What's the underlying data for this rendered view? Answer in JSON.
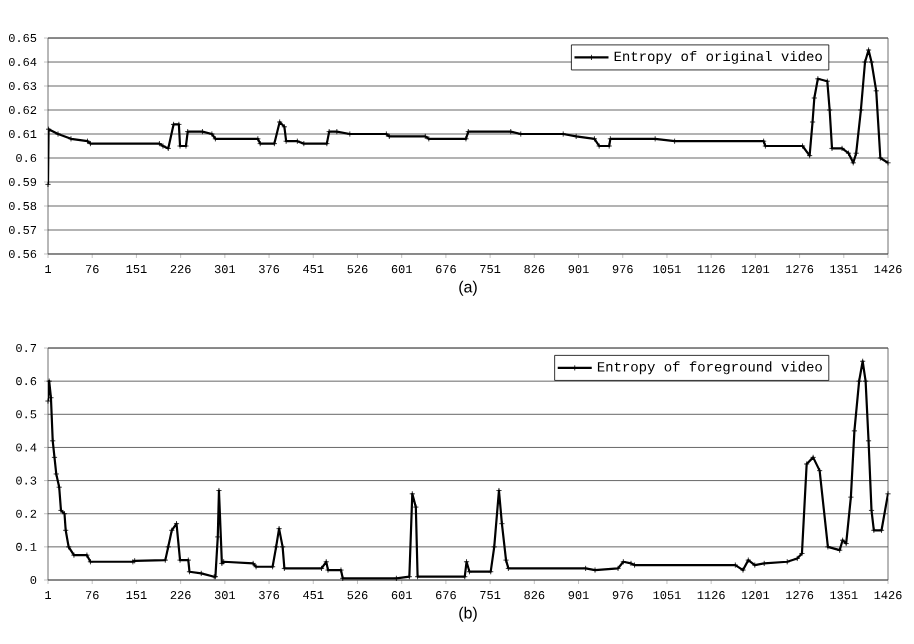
{
  "chart_data": [
    {
      "type": "line",
      "xlabel": "(a)",
      "xlim": [
        1,
        1426
      ],
      "xticks": [
        1,
        76,
        151,
        226,
        301,
        376,
        451,
        526,
        601,
        676,
        751,
        826,
        901,
        976,
        1051,
        1126,
        1201,
        1276,
        1351,
        1426
      ],
      "ylim": [
        0.56,
        0.65
      ],
      "yticks": [
        0.56,
        0.57,
        0.58,
        0.59,
        0.6,
        0.61,
        0.62,
        0.63,
        0.64,
        0.65
      ],
      "grid": "y",
      "legend": "top right",
      "marker": "cross",
      "series": [
        {
          "name": "Entropy of original video",
          "color": "#000000",
          "x": [
            1,
            2,
            18,
            40,
            68,
            73,
            190,
            196,
            205,
            214,
            223,
            225,
            235,
            238,
            263,
            279,
            285,
            357,
            361,
            385,
            394,
            402,
            405,
            424,
            435,
            474,
            478,
            491,
            513,
            575,
            580,
            641,
            647,
            710,
            714,
            786,
            803,
            875,
            897,
            928,
            936,
            953,
            955,
            1031,
            1064,
            1215,
            1218,
            1281,
            1293,
            1298,
            1301,
            1307,
            1323,
            1327,
            1331,
            1348,
            1359,
            1367,
            1372,
            1380,
            1387,
            1393,
            1398,
            1406,
            1413,
            1426
          ],
          "values": [
            0.589,
            0.612,
            0.61,
            0.608,
            0.607,
            0.606,
            0.606,
            0.605,
            0.604,
            0.614,
            0.614,
            0.605,
            0.605,
            0.611,
            0.611,
            0.61,
            0.608,
            0.608,
            0.606,
            0.606,
            0.615,
            0.613,
            0.607,
            0.607,
            0.606,
            0.606,
            0.611,
            0.611,
            0.61,
            0.61,
            0.609,
            0.609,
            0.608,
            0.608,
            0.611,
            0.611,
            0.61,
            0.61,
            0.609,
            0.608,
            0.605,
            0.605,
            0.608,
            0.608,
            0.607,
            0.607,
            0.605,
            0.605,
            0.601,
            0.615,
            0.625,
            0.633,
            0.632,
            0.62,
            0.604,
            0.604,
            0.602,
            0.598,
            0.602,
            0.62,
            0.64,
            0.645,
            0.64,
            0.628,
            0.6,
            0.598
          ]
        }
      ]
    },
    {
      "type": "line",
      "xlabel": "(b)",
      "xlim": [
        1,
        1426
      ],
      "xticks": [
        1,
        76,
        151,
        226,
        301,
        376,
        451,
        526,
        601,
        676,
        751,
        826,
        901,
        976,
        1051,
        1126,
        1201,
        1276,
        1351,
        1426
      ],
      "ylim": [
        0,
        0.7
      ],
      "yticks": [
        0,
        0.1,
        0.2,
        0.3,
        0.4,
        0.5,
        0.6,
        0.7
      ],
      "grid": "y",
      "legend": "top right",
      "marker": "cross",
      "series": [
        {
          "name": "Entropy of foreground video",
          "color": "#000000",
          "x": [
            1,
            3,
            6,
            9,
            12,
            15,
            20,
            23,
            29,
            31,
            36,
            45,
            67,
            73,
            145,
            148,
            200,
            205,
            211,
            219,
            225,
            239,
            241,
            261,
            283,
            285,
            289,
            291,
            296,
            299,
            349,
            354,
            382,
            388,
            393,
            399,
            402,
            465,
            473,
            476,
            498,
            501,
            592,
            614,
            619,
            625,
            628,
            708,
            711,
            716,
            752,
            758,
            766,
            771,
            778,
            782,
            913,
            929,
            968,
            977,
            990,
            996,
            1167,
            1180,
            1189,
            1200,
            1216,
            1255,
            1272,
            1280,
            1288,
            1299,
            1310,
            1324,
            1344,
            1349,
            1355,
            1363,
            1369,
            1377,
            1383,
            1388,
            1393,
            1398,
            1402,
            1415,
            1426
          ],
          "values": [
            0.54,
            0.6,
            0.55,
            0.42,
            0.37,
            0.32,
            0.28,
            0.21,
            0.2,
            0.15,
            0.1,
            0.075,
            0.075,
            0.055,
            0.055,
            0.058,
            0.06,
            0.1,
            0.15,
            0.17,
            0.06,
            0.06,
            0.025,
            0.02,
            0.01,
            0.01,
            0.13,
            0.27,
            0.05,
            0.055,
            0.05,
            0.04,
            0.04,
            0.1,
            0.155,
            0.1,
            0.035,
            0.035,
            0.055,
            0.03,
            0.03,
            0.005,
            0.005,
            0.01,
            0.26,
            0.22,
            0.01,
            0.01,
            0.055,
            0.025,
            0.025,
            0.1,
            0.27,
            0.17,
            0.06,
            0.035,
            0.035,
            0.03,
            0.035,
            0.055,
            0.05,
            0.045,
            0.045,
            0.03,
            0.06,
            0.045,
            0.05,
            0.055,
            0.065,
            0.08,
            0.35,
            0.37,
            0.33,
            0.1,
            0.09,
            0.12,
            0.11,
            0.25,
            0.45,
            0.6,
            0.66,
            0.6,
            0.42,
            0.21,
            0.15,
            0.15,
            0.26
          ]
        }
      ]
    }
  ]
}
